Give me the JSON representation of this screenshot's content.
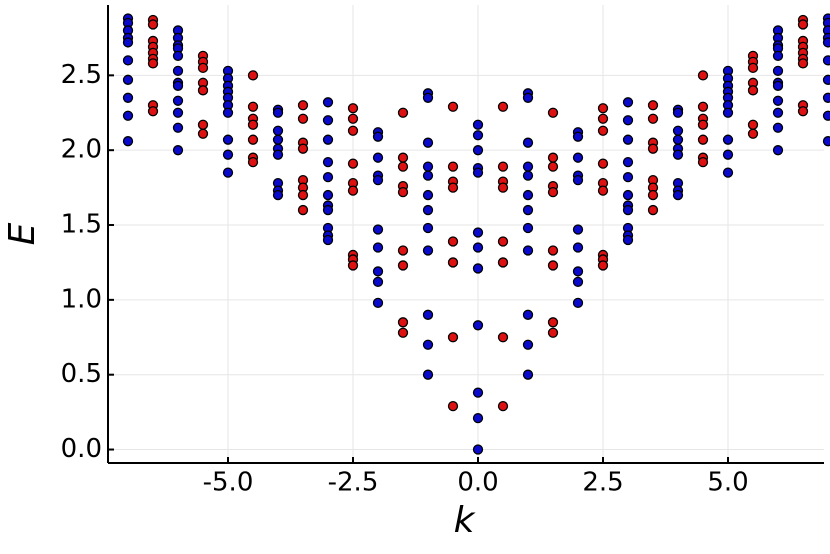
{
  "chart_data": {
    "type": "scatter",
    "xlabel": "k",
    "ylabel": "E",
    "xlim": [
      -7.4,
      6.92
    ],
    "ylim": [
      -0.09,
      2.97
    ],
    "xticks": [
      {
        "value": -5,
        "label": "-5.0"
      },
      -2.5,
      {
        "value": 0,
        "label": "0.0"
      },
      2.5,
      {
        "value": 5,
        "label": "5.0"
      }
    ],
    "yticks": [
      {
        "value": 0,
        "label": "0.0"
      },
      0.5,
      {
        "value": 1,
        "label": "1.0"
      },
      1.5,
      {
        "value": 2,
        "label": "2.0"
      },
      2.5
    ],
    "grid": true,
    "series": [
      {
        "color": "#0a0acc",
        "x": [
          -7,
          -7,
          -7,
          -7,
          -7,
          -7,
          -7,
          -7,
          -7,
          -7,
          -6,
          -6,
          -6,
          -6,
          -6,
          -6,
          -6,
          -6,
          -6,
          -6,
          -6,
          -6,
          -5,
          -5,
          -5,
          -5,
          -5,
          -5,
          -5,
          -5,
          -5,
          -5,
          -4,
          -4,
          -4,
          -4,
          -4,
          -4,
          -4,
          -4,
          -4,
          -3,
          -3,
          -3,
          -3,
          -3,
          -3,
          -3,
          -3,
          -3,
          -3,
          -3,
          -2,
          -2,
          -2,
          -2,
          -2,
          -2,
          -2,
          -2,
          -2,
          -2,
          -1,
          -1,
          -1,
          -1,
          -1,
          -1,
          -1,
          -1,
          -1,
          -1,
          -1,
          -1,
          0,
          0,
          0,
          0,
          0,
          0,
          0,
          0,
          0,
          0,
          0,
          0,
          1,
          1,
          1,
          1,
          1,
          1,
          1,
          1,
          1,
          1,
          1,
          1,
          2,
          2,
          2,
          2,
          2,
          2,
          2,
          2,
          2,
          2,
          3,
          3,
          3,
          3,
          3,
          3,
          3,
          3,
          3,
          3,
          3,
          4,
          4,
          4,
          4,
          4,
          4,
          4,
          4,
          4,
          5,
          5,
          5,
          5,
          5,
          5,
          5,
          5,
          5,
          5,
          6,
          6,
          6,
          6,
          6,
          6,
          6,
          6,
          6,
          6,
          6,
          6,
          7,
          7,
          7,
          7,
          7,
          7,
          7,
          7,
          7,
          7
        ],
        "values": [
          2.88,
          2.85,
          2.8,
          2.75,
          2.72,
          2.6,
          2.47,
          2.35,
          2.23,
          2.06,
          2.8,
          2.75,
          2.7,
          2.68,
          2.63,
          2.53,
          2.45,
          2.43,
          2.33,
          2.25,
          2.15,
          2.0,
          2.53,
          2.48,
          2.43,
          2.39,
          2.35,
          2.3,
          2.25,
          2.07,
          1.97,
          1.85,
          2.27,
          2.25,
          2.13,
          2.07,
          2.01,
          1.97,
          1.78,
          1.73,
          1.7,
          2.32,
          2.2,
          2.07,
          1.92,
          1.82,
          1.7,
          1.63,
          1.6,
          1.48,
          1.43,
          1.4,
          2.12,
          2.09,
          1.95,
          1.83,
          1.8,
          1.47,
          1.35,
          1.19,
          1.12,
          0.98,
          2.38,
          2.35,
          2.05,
          1.89,
          1.83,
          1.7,
          1.6,
          1.48,
          1.33,
          0.9,
          0.7,
          0.5,
          2.17,
          2.1,
          2.0,
          1.88,
          1.85,
          1.45,
          1.35,
          1.21,
          0.83,
          0.38,
          0.21,
          0.0,
          2.38,
          2.35,
          2.05,
          1.89,
          1.83,
          1.7,
          1.6,
          1.48,
          1.33,
          0.9,
          0.7,
          0.5,
          2.12,
          2.09,
          1.95,
          1.83,
          1.8,
          1.47,
          1.35,
          1.19,
          1.12,
          0.98,
          2.32,
          2.2,
          2.07,
          1.92,
          1.82,
          1.7,
          1.63,
          1.6,
          1.48,
          1.43,
          1.4,
          2.27,
          2.25,
          2.13,
          2.07,
          2.01,
          1.97,
          1.78,
          1.73,
          1.7,
          2.53,
          2.48,
          2.43,
          2.39,
          2.35,
          2.3,
          2.25,
          2.07,
          1.97,
          1.85,
          2.8,
          2.75,
          2.7,
          2.68,
          2.63,
          2.53,
          2.45,
          2.43,
          2.33,
          2.25,
          2.15,
          2.0,
          2.88,
          2.85,
          2.8,
          2.75,
          2.72,
          2.6,
          2.47,
          2.35,
          2.23,
          2.06
        ]
      },
      {
        "color": "#dd1111",
        "x": [
          -6.5,
          -6.5,
          -6.5,
          -6.5,
          -6.5,
          -6.5,
          -6.5,
          -6.5,
          -6.5,
          -5.5,
          -5.5,
          -5.5,
          -5.5,
          -5.5,
          -5.5,
          -5.5,
          -4.5,
          -4.5,
          -4.5,
          -4.5,
          -4.5,
          -4.5,
          -4.5,
          -3.5,
          -3.5,
          -3.5,
          -3.5,
          -3.5,
          -3.5,
          -3.5,
          -3.5,
          -2.5,
          -2.5,
          -2.5,
          -2.5,
          -2.5,
          -2.5,
          -2.5,
          -2.5,
          -2.5,
          -1.5,
          -1.5,
          -1.5,
          -1.5,
          -1.5,
          -1.5,
          -1.5,
          -1.5,
          -1.5,
          -0.5,
          -0.5,
          -0.5,
          -0.5,
          -0.5,
          -0.5,
          -0.5,
          -0.5,
          0.5,
          0.5,
          0.5,
          0.5,
          0.5,
          0.5,
          0.5,
          0.5,
          1.5,
          1.5,
          1.5,
          1.5,
          1.5,
          1.5,
          1.5,
          1.5,
          1.5,
          2.5,
          2.5,
          2.5,
          2.5,
          2.5,
          2.5,
          2.5,
          2.5,
          2.5,
          3.5,
          3.5,
          3.5,
          3.5,
          3.5,
          3.5,
          3.5,
          3.5,
          4.5,
          4.5,
          4.5,
          4.5,
          4.5,
          4.5,
          4.5,
          5.5,
          5.5,
          5.5,
          5.5,
          5.5,
          5.5,
          5.5,
          6.5,
          6.5,
          6.5,
          6.5,
          6.5,
          6.5,
          6.5,
          6.5,
          6.5
        ],
        "values": [
          2.87,
          2.84,
          2.73,
          2.69,
          2.65,
          2.61,
          2.58,
          2.3,
          2.26,
          2.63,
          2.59,
          2.55,
          2.45,
          2.4,
          2.17,
          2.11,
          2.5,
          2.29,
          2.21,
          2.17,
          2.07,
          1.95,
          1.92,
          2.3,
          2.21,
          2.05,
          2.01,
          1.8,
          1.75,
          1.7,
          1.6,
          2.28,
          2.21,
          2.13,
          1.91,
          1.78,
          1.73,
          1.3,
          1.27,
          1.23,
          2.25,
          1.95,
          1.89,
          1.76,
          1.72,
          1.33,
          1.23,
          0.85,
          0.78,
          2.29,
          1.89,
          1.79,
          1.75,
          1.39,
          1.25,
          0.75,
          0.29,
          2.29,
          1.89,
          1.79,
          1.75,
          1.39,
          1.25,
          0.75,
          0.29,
          2.25,
          1.95,
          1.89,
          1.76,
          1.72,
          1.33,
          1.23,
          0.85,
          0.78,
          2.28,
          2.21,
          2.13,
          1.91,
          1.78,
          1.73,
          1.3,
          1.27,
          1.23,
          2.3,
          2.21,
          2.05,
          2.01,
          1.8,
          1.75,
          1.7,
          1.6,
          2.5,
          2.29,
          2.21,
          2.17,
          2.07,
          1.95,
          1.92,
          2.63,
          2.59,
          2.55,
          2.45,
          2.4,
          2.17,
          2.11,
          2.87,
          2.84,
          2.73,
          2.69,
          2.65,
          2.61,
          2.58,
          2.3,
          2.26
        ]
      }
    ]
  }
}
